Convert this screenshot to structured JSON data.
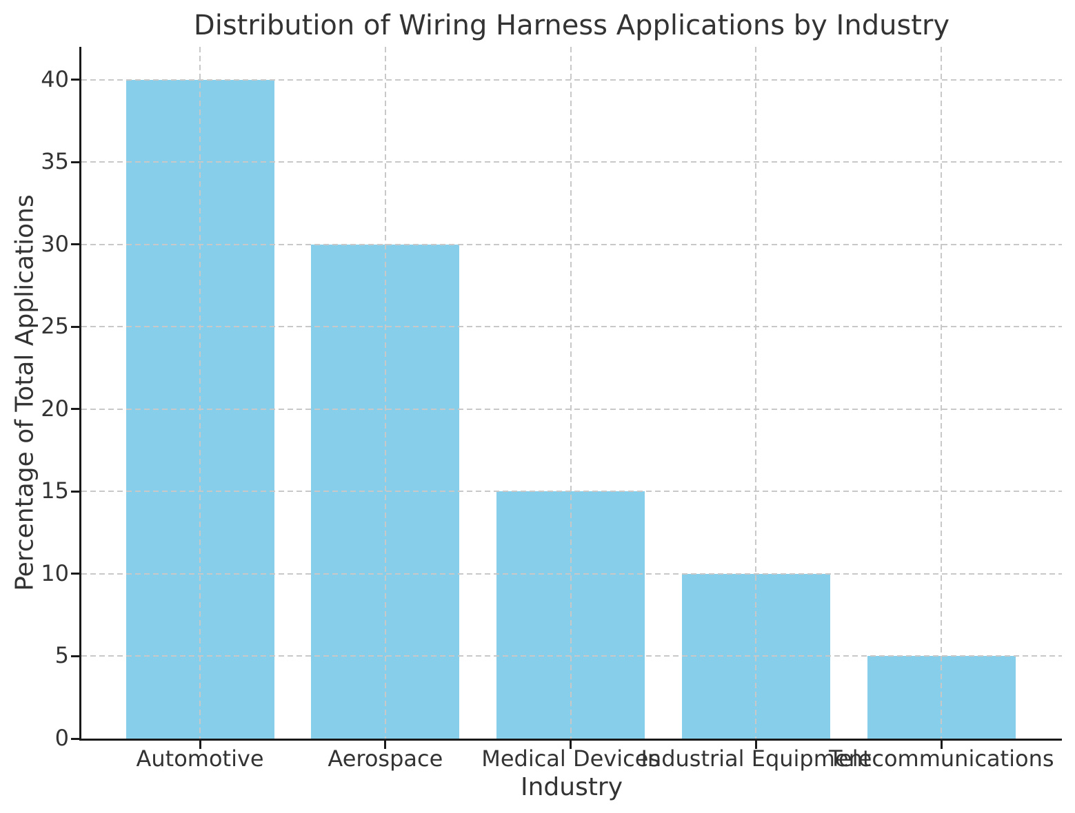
{
  "chart_data": {
    "type": "bar",
    "title": "Distribution of Wiring Harness Applications by Industry",
    "xlabel": "Industry",
    "ylabel": "Percentage of Total Applications",
    "categories": [
      "Automotive",
      "Aerospace",
      "Medical Devices",
      "Industrial Equipment",
      "Telecommunications"
    ],
    "values": [
      40,
      30,
      15,
      10,
      5
    ],
    "y_ticks": [
      0,
      5,
      10,
      15,
      20,
      25,
      30,
      35,
      40
    ],
    "ylim": [
      0,
      42
    ],
    "grid": "dashed gridlines on both axes, drawn above bars",
    "legend": "none",
    "bar_color": "#87CEEB",
    "grid_color": "#c8c8c8",
    "spine_color": "#1a1a1a",
    "text_color": "#333333"
  }
}
